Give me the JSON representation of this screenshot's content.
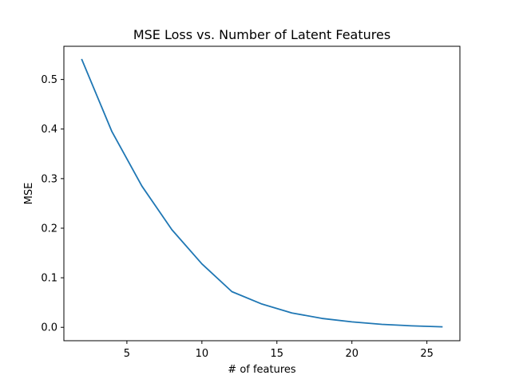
{
  "chart_data": {
    "type": "line",
    "title": "MSE Loss vs. Number of Latent Features",
    "xlabel": "# of features",
    "ylabel": "MSE",
    "xlim": [
      0.8,
      27.2
    ],
    "ylim": [
      -0.027,
      0.567
    ],
    "x_ticks": [
      5,
      10,
      15,
      20,
      25
    ],
    "y_ticks": [
      0.0,
      0.1,
      0.2,
      0.3,
      0.4,
      0.5
    ],
    "x_tick_labels": [
      "5",
      "10",
      "15",
      "20",
      "25"
    ],
    "y_tick_labels": [
      "0.0",
      "0.1",
      "0.2",
      "0.3",
      "0.4",
      "0.5"
    ],
    "grid": false,
    "legend": "none",
    "series": [
      {
        "color": "#1f77b4",
        "x": [
          2,
          4,
          6,
          8,
          10,
          12,
          14,
          16,
          18,
          20,
          22,
          24,
          26
        ],
        "y": [
          0.54,
          0.395,
          0.285,
          0.197,
          0.128,
          0.072,
          0.047,
          0.029,
          0.018,
          0.011,
          0.006,
          0.003,
          0.001
        ]
      }
    ]
  }
}
